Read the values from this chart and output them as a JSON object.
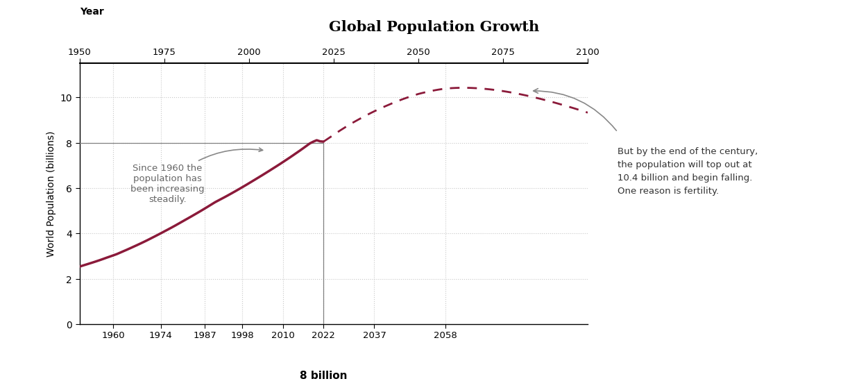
{
  "title": "Global Population Growth",
  "title_fontsize": 15,
  "title_bg_color": "#e0e0e0",
  "xlabel_top": "Year",
  "ylabel": "World Population (billions)",
  "line_color": "#8B1A3A",
  "background_color": "#ffffff",
  "grid_color": "#c8c8c8",
  "top_xticks": [
    1950,
    1975,
    2000,
    2025,
    2050,
    2075,
    2100
  ],
  "bottom_xtick_labels": [
    "1960",
    "1974",
    "1987",
    "1998",
    "2010",
    "2022",
    "2037",
    "2058"
  ],
  "bottom_xtick_positions": [
    1960,
    1974,
    1987,
    1998,
    2010,
    2022,
    2037,
    2058
  ],
  "yticks": [
    0,
    2,
    4,
    6,
    8,
    10
  ],
  "ylim": [
    0,
    11.5
  ],
  "xlim": [
    1950,
    2100
  ],
  "vline_x": 2022,
  "annotation1_text": "Since 1960 the\npopulation has\nbeen increasing\nsteadily.",
  "annotation2_text": "But by the end of the century,\nthe population will top out at\n10.4 billion and begin falling.\nOne reason is fertility.",
  "label_8billion_text": "8 billion",
  "solid_years": [
    1950,
    1951,
    1952,
    1953,
    1954,
    1955,
    1956,
    1957,
    1958,
    1959,
    1960,
    1961,
    1962,
    1963,
    1964,
    1965,
    1966,
    1967,
    1968,
    1969,
    1970,
    1971,
    1972,
    1973,
    1974,
    1975,
    1976,
    1977,
    1978,
    1979,
    1980,
    1981,
    1982,
    1983,
    1984,
    1985,
    1986,
    1987,
    1988,
    1989,
    1990,
    1991,
    1992,
    1993,
    1994,
    1995,
    1996,
    1997,
    1998,
    1999,
    2000,
    2001,
    2002,
    2003,
    2004,
    2005,
    2006,
    2007,
    2008,
    2009,
    2010,
    2011,
    2012,
    2013,
    2014,
    2015,
    2016,
    2017,
    2018,
    2019,
    2020,
    2021,
    2022
  ],
  "solid_pop": [
    2.536,
    2.584,
    2.63,
    2.677,
    2.724,
    2.773,
    2.823,
    2.876,
    2.93,
    2.982,
    3.034,
    3.088,
    3.153,
    3.218,
    3.283,
    3.35,
    3.418,
    3.486,
    3.556,
    3.627,
    3.7,
    3.776,
    3.852,
    3.929,
    4.007,
    4.086,
    4.165,
    4.245,
    4.326,
    4.41,
    4.495,
    4.58,
    4.664,
    4.749,
    4.835,
    4.922,
    5.01,
    5.1,
    5.191,
    5.283,
    5.375,
    5.454,
    5.533,
    5.612,
    5.694,
    5.777,
    5.861,
    5.947,
    6.034,
    6.121,
    6.211,
    6.301,
    6.391,
    6.482,
    6.573,
    6.666,
    6.759,
    6.854,
    6.948,
    7.044,
    7.141,
    7.24,
    7.339,
    7.441,
    7.544,
    7.647,
    7.753,
    7.861,
    7.97,
    8.045,
    8.108,
    8.06,
    8.045
  ],
  "dashed_years": [
    2022,
    2023,
    2024,
    2025,
    2026,
    2027,
    2028,
    2029,
    2030,
    2031,
    2032,
    2033,
    2034,
    2035,
    2036,
    2037,
    2038,
    2039,
    2040,
    2041,
    2042,
    2043,
    2044,
    2045,
    2046,
    2047,
    2048,
    2049,
    2050,
    2051,
    2052,
    2053,
    2054,
    2055,
    2056,
    2057,
    2058,
    2059,
    2060,
    2061,
    2062,
    2063,
    2064,
    2065,
    2066,
    2067,
    2068,
    2069,
    2070,
    2071,
    2072,
    2073,
    2074,
    2075,
    2076,
    2077,
    2078,
    2079,
    2080,
    2081,
    2082,
    2083,
    2084,
    2085,
    2086,
    2087,
    2088,
    2089,
    2090,
    2091,
    2092,
    2093,
    2094,
    2095,
    2096,
    2097,
    2098,
    2099,
    2100
  ],
  "dashed_pop": [
    8.045,
    8.145,
    8.245,
    8.345,
    8.446,
    8.546,
    8.64,
    8.735,
    8.825,
    8.91,
    8.993,
    9.075,
    9.155,
    9.233,
    9.31,
    9.383,
    9.454,
    9.523,
    9.59,
    9.654,
    9.718,
    9.779,
    9.839,
    9.896,
    9.951,
    10.003,
    10.053,
    10.101,
    10.147,
    10.185,
    10.22,
    10.254,
    10.285,
    10.314,
    10.34,
    10.363,
    10.384,
    10.396,
    10.406,
    10.413,
    10.418,
    10.42,
    10.419,
    10.416,
    10.41,
    10.403,
    10.393,
    10.381,
    10.367,
    10.352,
    10.335,
    10.316,
    10.295,
    10.273,
    10.249,
    10.224,
    10.196,
    10.168,
    10.138,
    10.107,
    10.075,
    10.041,
    10.006,
    9.97,
    9.933,
    9.895,
    9.856,
    9.816,
    9.775,
    9.733,
    9.69,
    9.647,
    9.603,
    9.558,
    9.513,
    9.467,
    9.42,
    9.373,
    9.325
  ]
}
